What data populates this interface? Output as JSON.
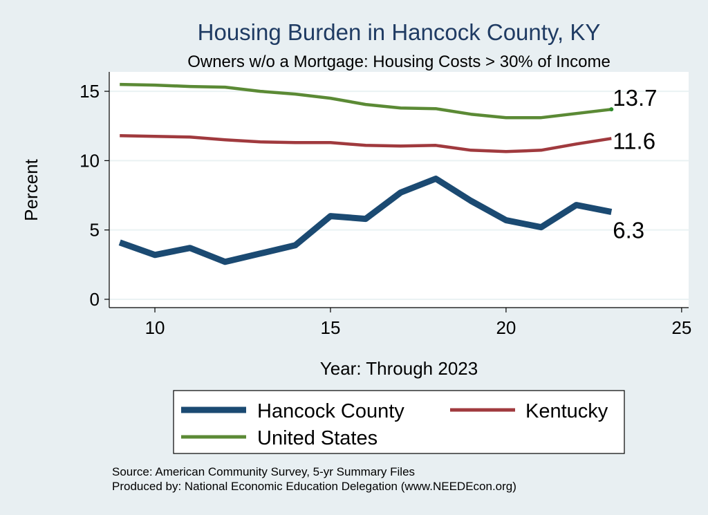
{
  "chart_data": {
    "type": "line",
    "title": "Housing Burden in Hancock County, KY",
    "subtitle": "Owners w/o a Mortgage: Housing Costs > 30% of Income",
    "xlabel": "Year: Through 2023",
    "ylabel": "Percent",
    "xlim": [
      8.7,
      25.2
    ],
    "ylim": [
      -0.6,
      16.4
    ],
    "x_ticks": [
      10,
      15,
      20,
      25
    ],
    "y_ticks": [
      0,
      5,
      10,
      15
    ],
    "grid": true,
    "legend_position": "bottom",
    "x": [
      9,
      10,
      11,
      12,
      13,
      14,
      15,
      16,
      17,
      18,
      19,
      20,
      21,
      22,
      23
    ],
    "series": [
      {
        "name": "Hancock County",
        "color": "#1b4a72",
        "values": [
          4.1,
          3.2,
          3.7,
          2.7,
          3.3,
          3.9,
          6.0,
          5.8,
          7.7,
          8.7,
          7.1,
          5.7,
          5.2,
          6.8,
          6.3
        ],
        "end_label": "6.3"
      },
      {
        "name": "Kentucky",
        "color": "#a03a3e",
        "values": [
          11.8,
          11.75,
          11.7,
          11.5,
          11.35,
          11.3,
          11.3,
          11.1,
          11.05,
          11.1,
          10.75,
          10.65,
          10.75,
          11.2,
          11.6
        ],
        "end_label": "11.6"
      },
      {
        "name": "United States",
        "color": "#5b8a35",
        "values": [
          15.5,
          15.45,
          15.35,
          15.3,
          15.0,
          14.8,
          14.5,
          14.05,
          13.8,
          13.75,
          13.35,
          13.1,
          13.1,
          13.4,
          13.7
        ],
        "end_label": "13.7"
      }
    ],
    "source_lines": [
      "Source: American Community Survey, 5-yr Summary Files",
      "Produced by: National Economic Education Delegation (www.NEEDEcon.org)"
    ]
  }
}
